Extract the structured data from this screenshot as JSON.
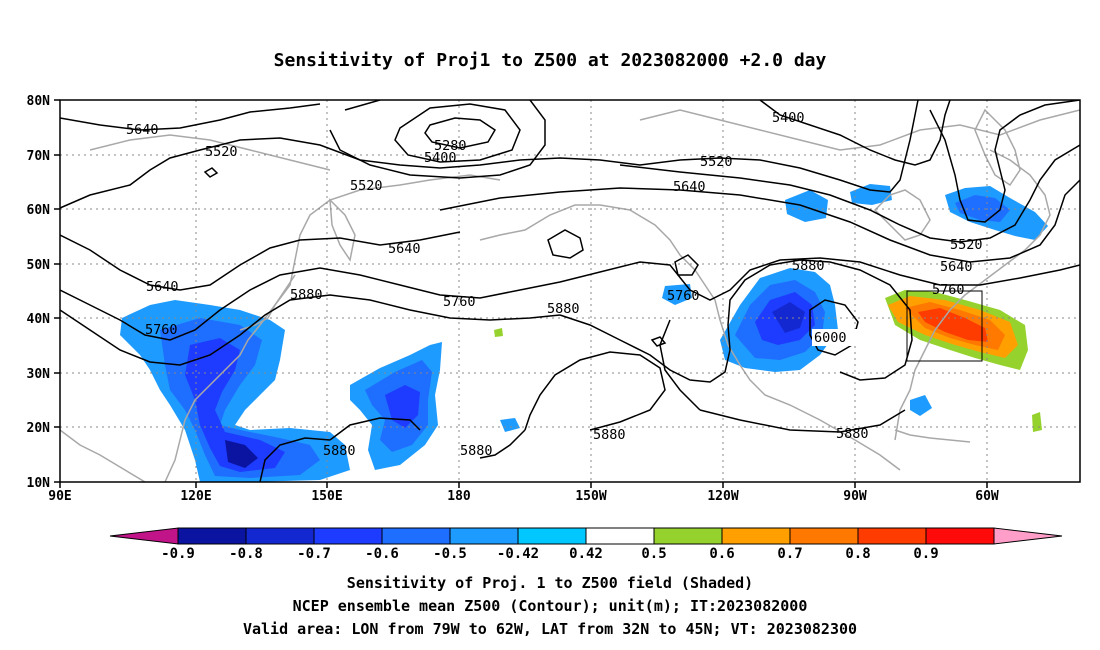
{
  "title": "Sensitivity of Proj1 to Z500 at 2023082000 +2.0 day",
  "caption": {
    "line1": "Sensitivity of Proj. 1 to Z500 field (Shaded)",
    "line2": "NCEP ensemble mean Z500 (Contour); unit(m); IT:2023082000",
    "line3": "Valid area: LON from 79W to 62W, LAT from 32N to 45N; VT: 2023082300"
  },
  "map": {
    "lat_labels": [
      "80N",
      "70N",
      "60N",
      "50N",
      "40N",
      "30N",
      "20N",
      "10N"
    ],
    "lon_labels": [
      "90E",
      "120E",
      "150E",
      "180",
      "150W",
      "120W",
      "90W",
      "60W"
    ],
    "lat_range": [
      10,
      80
    ],
    "lon_range": [
      90,
      312
    ],
    "grid": true,
    "valid_box": {
      "lon": [
        -79,
        -62
      ],
      "lat": [
        32,
        45
      ]
    },
    "contour_labels": [
      "5640",
      "5520",
      "5280",
      "5400",
      "5520",
      "5400",
      "5520",
      "5640",
      "5640",
      "5640",
      "5760",
      "5880",
      "5760",
      "5880",
      "5880",
      "5880",
      "5760",
      "5880",
      "6000",
      "5520",
      "5640",
      "5760",
      "5880",
      "5880"
    ]
  },
  "colorbar": {
    "labels": [
      "-0.9",
      "-0.8",
      "-0.7",
      "-0.6",
      "-0.5",
      "-0.42",
      "0.42",
      "0.5",
      "0.6",
      "0.7",
      "0.8",
      "0.9"
    ],
    "colors": [
      "#0a14a0",
      "#1428d2",
      "#1e3cff",
      "#1e6eff",
      "#1e9bff",
      "#00c8ff",
      "#ffffff",
      "#96d22d",
      "#ffa000",
      "#ff7800",
      "#ff3c00",
      "#ff0a0a"
    ],
    "under_color": "#c01488",
    "over_color": "#ff9ec8"
  }
}
